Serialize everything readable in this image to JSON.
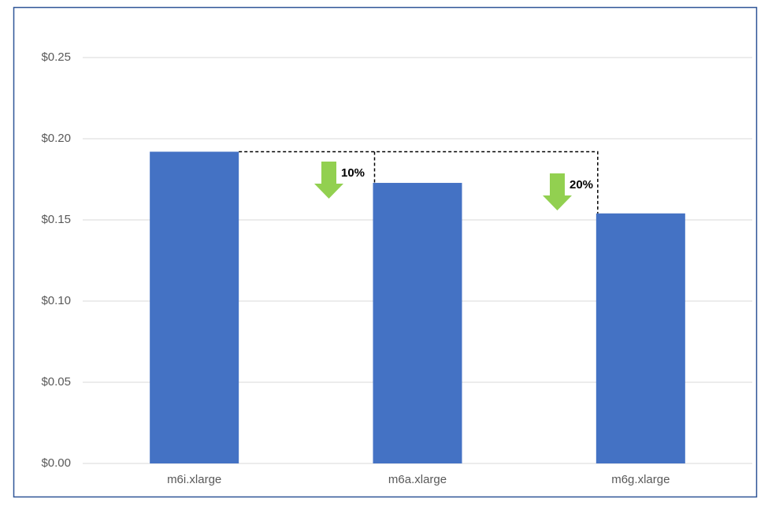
{
  "chart_data": {
    "type": "bar",
    "categories": [
      "m6i.xlarge",
      "m6a.xlarge",
      "m6g.xlarge"
    ],
    "values": [
      0.192,
      0.1728,
      0.154
    ],
    "color": "#4472c4",
    "ylim": [
      0,
      0.25
    ],
    "yticks": [
      {
        "value": 0,
        "label": "$0.00"
      },
      {
        "value": 0.05,
        "label": "$0.05"
      },
      {
        "value": 0.1,
        "label": "$0.10"
      },
      {
        "value": 0.15,
        "label": "$0.15"
      },
      {
        "value": 0.2,
        "label": "$0.20"
      },
      {
        "value": 0.25,
        "label": "$0.25"
      }
    ],
    "grid": true,
    "annotations": [
      "10%",
      "20%"
    ]
  }
}
